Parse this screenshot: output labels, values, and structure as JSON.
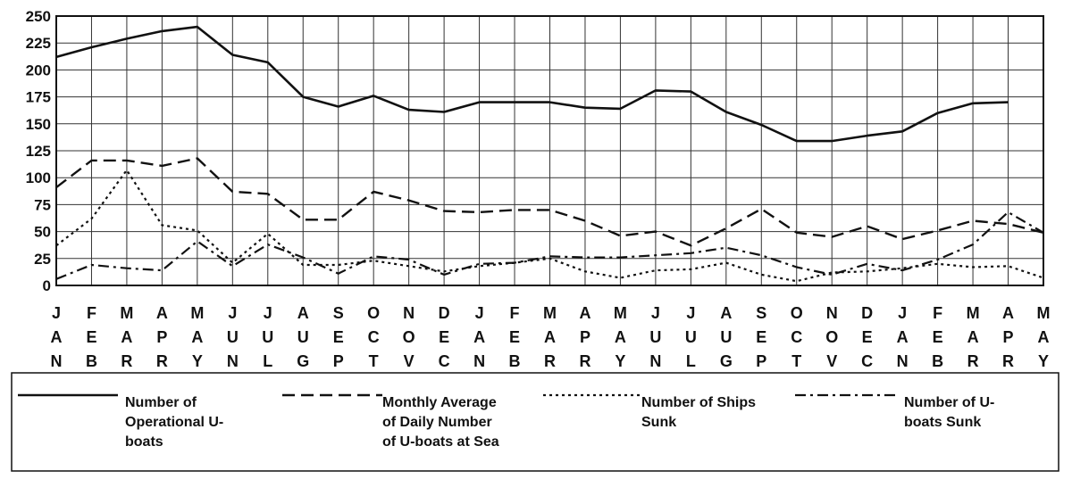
{
  "chart_data": {
    "type": "line",
    "categories": [
      "JAN",
      "FEB",
      "MAR",
      "APR",
      "MAY",
      "JUN",
      "JUL",
      "AUG",
      "SEP",
      "OCT",
      "NOV",
      "DEC",
      "JAN",
      "FEB",
      "MAR",
      "APR",
      "MAY",
      "JUN",
      "JUL",
      "AUG",
      "SEP",
      "OCT",
      "NOV",
      "DEC",
      "JAN",
      "FEB",
      "MAR",
      "APR",
      "MAY"
    ],
    "ylim": [
      0,
      250
    ],
    "yticks": [
      0,
      25,
      50,
      75,
      100,
      125,
      150,
      175,
      200,
      225,
      250
    ],
    "grid": true,
    "legend_position": "bottom",
    "series": [
      {
        "name": "Number of Operational U-boats",
        "style": "solid",
        "legend_lines": [
          "Number of",
          "Operational U-",
          "boats"
        ],
        "values": [
          212,
          221,
          229,
          236,
          240,
          214,
          207,
          175,
          166,
          176,
          163,
          161,
          170,
          170,
          170,
          165,
          164,
          181,
          180,
          161,
          149,
          134,
          134,
          139,
          143,
          160,
          169,
          170,
          null
        ]
      },
      {
        "name": "Monthly Average of Daily Number of U-boats at Sea",
        "style": "dash",
        "legend_lines": [
          "Monthly Average",
          "of Daily Number",
          "of U-boats at Sea"
        ],
        "values": [
          91,
          116,
          116,
          111,
          118,
          87,
          85,
          61,
          61,
          87,
          79,
          69,
          68,
          70,
          70,
          60,
          46,
          50,
          37,
          53,
          71,
          49,
          45,
          55,
          43,
          51,
          60,
          57,
          49
        ]
      },
      {
        "name": "Number of Ships Sunk",
        "style": "dot",
        "legend_lines": [
          "Number of Ships",
          "Sunk"
        ],
        "values": [
          37,
          62,
          107,
          56,
          51,
          21,
          48,
          19,
          19,
          23,
          18,
          13,
          18,
          21,
          25,
          13,
          7,
          14,
          15,
          21,
          10,
          4,
          12,
          13,
          16,
          20,
          17,
          18,
          7
        ]
      },
      {
        "name": "Number of U-boats Sunk",
        "style": "dashdot",
        "legend_lines": [
          "Number of U-",
          "boats Sunk"
        ],
        "values": [
          6,
          19,
          16,
          14,
          41,
          18,
          38,
          26,
          11,
          27,
          24,
          10,
          20,
          21,
          27,
          26,
          26,
          28,
          30,
          35,
          28,
          17,
          10,
          20,
          14,
          24,
          38,
          68,
          49
        ]
      }
    ]
  }
}
